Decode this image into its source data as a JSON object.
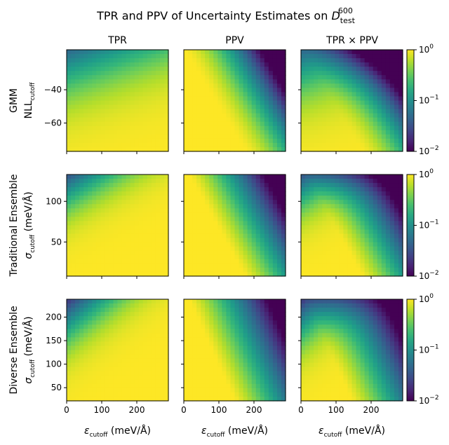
{
  "chart_data": {
    "type": "heatmap",
    "title": "TPR and PPV of Uncertainty Estimates on D_test^600",
    "title_parts": {
      "prefix": "TPR and PPV of Uncertainty Estimates on ",
      "symbol": "D",
      "sup": "600",
      "sub": "test"
    },
    "column_titles": [
      "TPR",
      "PPV",
      "TPR × PPV"
    ],
    "x_axis": {
      "label_symbol": "ε",
      "label_sub": "cutoff",
      "label_unit": " (meV/Å)",
      "range": [
        0,
        290
      ],
      "ticks": [
        0,
        100,
        200
      ],
      "tick_labels": [
        "0",
        "100",
        "200"
      ]
    },
    "colorbar": {
      "scale": "log",
      "range": [
        0.01,
        1
      ],
      "colormap": "viridis",
      "ticks": [
        {
          "value": 1,
          "base": "10",
          "exp": "0"
        },
        {
          "value": 0.1,
          "base": "10",
          "exp": "−1"
        },
        {
          "value": 0.01,
          "base": "10",
          "exp": "−2"
        }
      ]
    },
    "rows": [
      {
        "name": "GMM",
        "ylabel_top": "GMM",
        "ylabel_symbol": "NLL",
        "ylabel_sub": "cutoff",
        "ylabel_unit": "",
        "ylim": [
          -77,
          -16
        ],
        "yticks": [
          -40,
          -60
        ],
        "ytick_labels": [
          "−40",
          "−60"
        ],
        "panels": [
          "TPR",
          "PPV",
          "TPR × PPV"
        ]
      },
      {
        "name": "Traditional Ensemble",
        "ylabel_top": "Traditional Ensemble",
        "ylabel_symbol": "σ",
        "ylabel_sub": "cutoff",
        "ylabel_unit": " (meV/Å)",
        "ylim": [
          8,
          133
        ],
        "yticks": [
          100,
          50
        ],
        "ytick_labels": [
          "100",
          "50"
        ],
        "panels": [
          "TPR",
          "PPV",
          "TPR × PPV"
        ]
      },
      {
        "name": "Diverse Ensemble",
        "ylabel_top": "Diverse Ensemble",
        "ylabel_symbol": "σ",
        "ylabel_sub": "cutoff",
        "ylabel_unit": " (meV/Å)",
        "ylim": [
          22,
          238
        ],
        "yticks": [
          200,
          150,
          100,
          50
        ],
        "ytick_labels": [
          "200",
          "150",
          "100",
          "50"
        ],
        "panels": [
          "TPR",
          "PPV",
          "TPR × PPV"
        ]
      }
    ]
  }
}
